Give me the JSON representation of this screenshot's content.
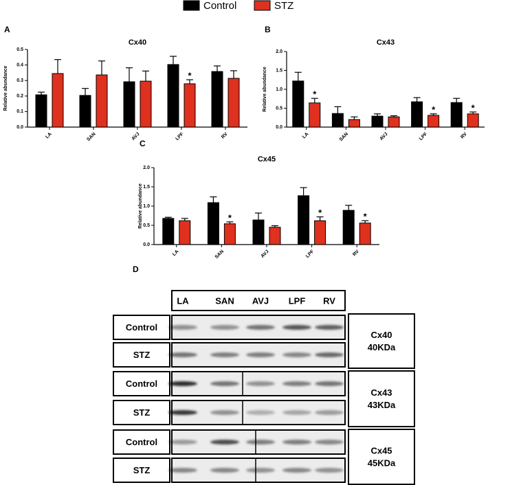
{
  "chart_data": [
    {
      "type": "bar",
      "panel": "A",
      "title": "Cx40",
      "y_label": "Relative abundance",
      "categories": [
        "LA",
        "SAN",
        "AVJ",
        "LPF",
        "RV"
      ],
      "ylim": [
        0,
        0.5
      ],
      "yticks": [
        {
          "value": 0,
          "label": "0.0"
        },
        0.1,
        0.2,
        0.3,
        0.4,
        0.5
      ],
      "series": [
        {
          "name": "Control",
          "color": "#000000",
          "values": [
            0.208,
            0.204,
            0.292,
            0.403,
            0.358
          ],
          "errors": [
            0.017,
            0.045,
            0.09,
            0.053,
            0.036
          ],
          "significance": [
            null,
            null,
            null,
            null,
            null
          ]
        },
        {
          "name": "STZ",
          "color": "#e0301e",
          "values": [
            0.345,
            0.336,
            0.296,
            0.279,
            0.314
          ],
          "errors": [
            0.09,
            0.09,
            0.065,
            0.026,
            0.049
          ],
          "significance": [
            null,
            null,
            null,
            "*",
            null
          ]
        }
      ]
    },
    {
      "type": "bar",
      "panel": "B",
      "title": "Cx43",
      "y_label": "Relative abundance",
      "categories": [
        "LA",
        "SAN",
        "AVJ",
        "LPF",
        "RV"
      ],
      "ylim": [
        0,
        2
      ],
      "yticks": [
        {
          "value": 0,
          "label": "0.0"
        },
        0.5,
        {
          "value": 1,
          "label": "1.0"
        },
        1.5,
        {
          "value": 2,
          "label": "2.0"
        }
      ],
      "series": [
        {
          "color": "#000000",
          "values": [
            1.22,
            0.36,
            0.29,
            0.67,
            0.65
          ],
          "errors": [
            0.23,
            0.18,
            0.06,
            0.11,
            0.11
          ],
          "significance": [
            null,
            null,
            null,
            null,
            null
          ]
        },
        {
          "color": "#e0301e",
          "values": [
            0.64,
            0.2,
            0.27,
            0.31,
            0.35
          ],
          "errors": [
            0.12,
            0.07,
            0.03,
            0.04,
            0.05
          ],
          "significance": [
            "*",
            null,
            null,
            "*",
            "*"
          ]
        }
      ]
    },
    {
      "type": "bar",
      "panel": "C",
      "title": "Cx45",
      "y_label": "Relative abundance",
      "categories": [
        "LA",
        "SAN",
        "AVJ",
        "LPF",
        "RV"
      ],
      "ylim": [
        0,
        2
      ],
      "yticks": [
        {
          "value": 0,
          "label": "0.0"
        },
        0.5,
        {
          "value": 1,
          "label": "1.0"
        },
        1.5,
        {
          "value": 2,
          "label": "2.0"
        }
      ],
      "series": [
        {
          "color": "#000000",
          "values": [
            0.68,
            1.09,
            0.64,
            1.27,
            0.89
          ],
          "errors": [
            0.03,
            0.15,
            0.18,
            0.21,
            0.13
          ],
          "significance": [
            null,
            null,
            null,
            null,
            null
          ]
        },
        {
          "color": "#e0301e",
          "values": [
            0.62,
            0.54,
            0.45,
            0.62,
            0.56
          ],
          "errors": [
            0.06,
            0.05,
            0.04,
            0.1,
            0.06
          ],
          "significance": [
            null,
            "*",
            null,
            "*",
            "*"
          ]
        }
      ]
    }
  ],
  "blot": {
    "panel": "D",
    "lanes": [
      "LA",
      "SAN",
      "AVJ",
      "LPF",
      "RV"
    ],
    "groups": [
      {
        "name": "Cx40",
        "size": "40KDa",
        "rows": [
          "Control",
          "STZ"
        ]
      },
      {
        "name": "Cx43",
        "size": "43KDa",
        "rows": [
          "Control",
          "STZ"
        ]
      },
      {
        "name": "Cx45",
        "size": "45KDa",
        "rows": [
          "Control",
          "STZ"
        ]
      }
    ]
  }
}
